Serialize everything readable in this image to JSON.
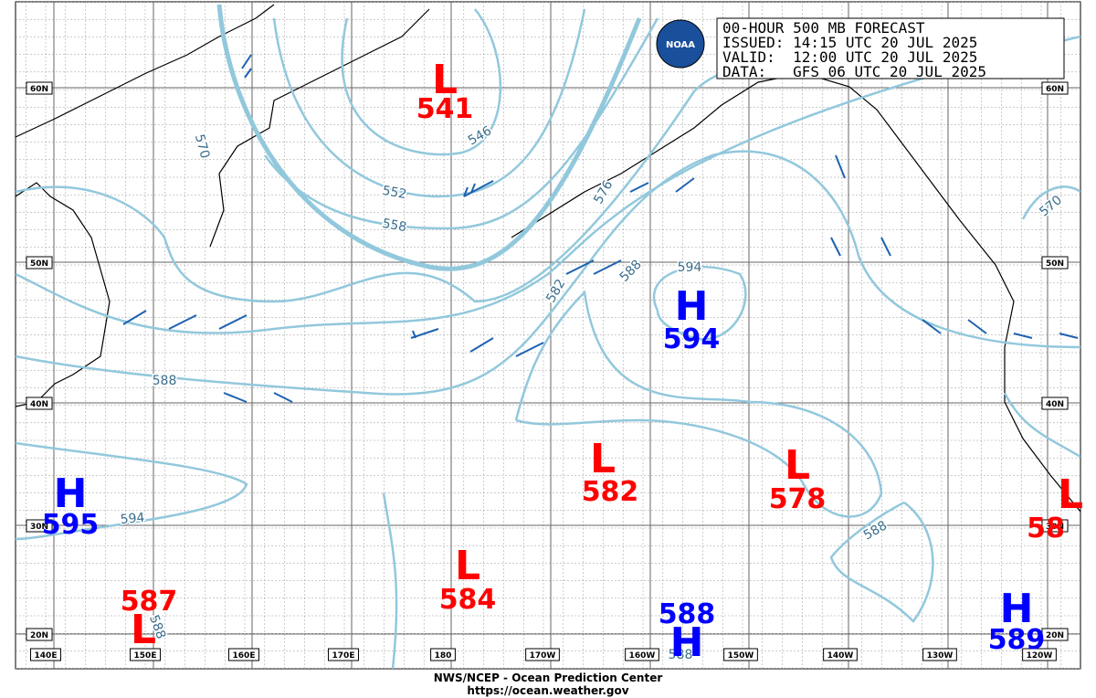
{
  "header": {
    "lines": [
      "00-HOUR 500 MB FORECAST",
      "ISSUED: 14:15 UTC 20 JUL 2025",
      "VALID:  12:00 UTC 20 JUL 2025",
      "DATA:   GFS 06 UTC 20 JUL 2025"
    ],
    "logo": "NOAA"
  },
  "latitude_labels": [
    "60N",
    "50N",
    "40N",
    "30N",
    "20N"
  ],
  "longitude_labels": [
    "140E",
    "150E",
    "160E",
    "170E",
    "180",
    "170W",
    "160W",
    "150W",
    "140W",
    "130W",
    "120W"
  ],
  "centers": [
    {
      "letter": "L",
      "value": "541"
    },
    {
      "letter": "L",
      "value": "582"
    },
    {
      "letter": "L",
      "value": "578"
    },
    {
      "letter": "L",
      "value": "584"
    },
    {
      "letter": "L",
      "value": "587"
    },
    {
      "letter": "L",
      "value": "58"
    },
    {
      "letter": "H",
      "value": "595"
    },
    {
      "letter": "H",
      "value": "594"
    },
    {
      "letter": "H",
      "value": "588"
    },
    {
      "letter": "H",
      "value": "589"
    }
  ],
  "contour_labels": [
    "570",
    "546",
    "552",
    "558",
    "576",
    "582",
    "588",
    "594",
    "588",
    "594",
    "588",
    "570",
    "588",
    "588"
  ],
  "footer": {
    "lines": [
      "NWS/NCEP - Ocean Prediction Center",
      "https://ocean.weather.gov"
    ]
  }
}
